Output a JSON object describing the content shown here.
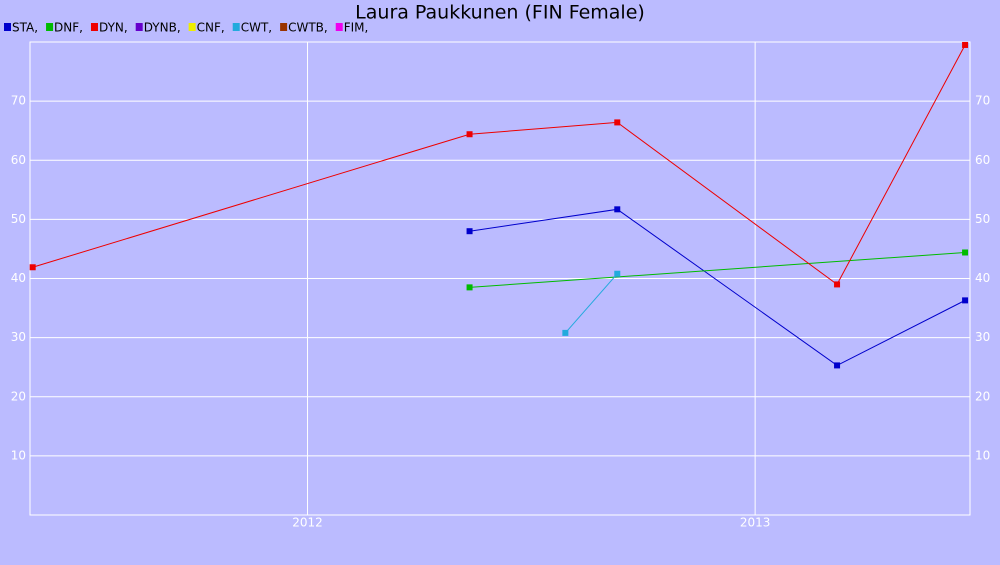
{
  "chart_data": {
    "type": "line",
    "title": "Laura Paukkunen (FIN Female)",
    "xlim": [
      2011.38,
      2013.48
    ],
    "xticks": [
      2012,
      2013
    ],
    "ylim": [
      0,
      80
    ],
    "yticks": [
      10,
      20,
      30,
      40,
      50,
      60,
      70
    ],
    "grid": true,
    "series": [
      {
        "name": "STA,",
        "color": "#0000cc",
        "x": [
          2012.362,
          2012.692,
          2013.183,
          2013.469
        ],
        "values": [
          48.0,
          51.7,
          25.3,
          36.3
        ]
      },
      {
        "name": "DNF,",
        "color": "#00bb00",
        "x": [
          2012.362,
          2013.469
        ],
        "values": [
          38.5,
          44.4
        ]
      },
      {
        "name": "DYN,",
        "color": "#ee0000",
        "x": [
          2011.386,
          2012.362,
          2012.692,
          2013.183,
          2013.469
        ],
        "values": [
          41.9,
          64.4,
          66.4,
          39.0,
          79.5
        ]
      },
      {
        "name": "DYNB,",
        "color": "#6600cc",
        "x": [],
        "values": []
      },
      {
        "name": "CNF,",
        "color": "#eeee00",
        "x": [],
        "values": []
      },
      {
        "name": "CWT,",
        "color": "#22aadd",
        "x": [
          2012.576,
          2012.692
        ],
        "values": [
          30.8,
          40.8
        ]
      },
      {
        "name": "CWTB,",
        "color": "#993300",
        "x": [],
        "values": []
      },
      {
        "name": "FIM,",
        "color": "#ee00ee",
        "x": [],
        "values": []
      }
    ]
  }
}
